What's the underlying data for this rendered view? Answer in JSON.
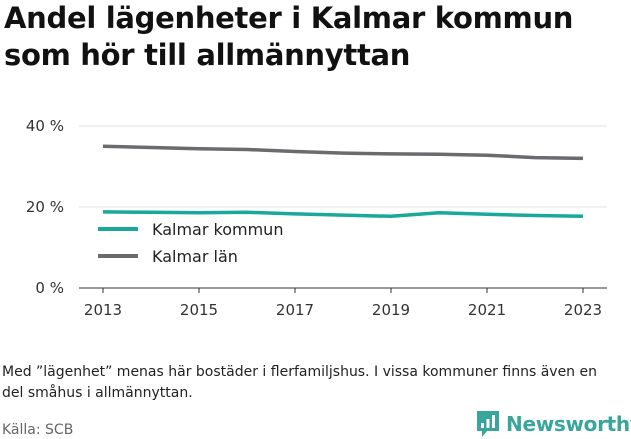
{
  "title": "Andel lägenheter i Kalmar kommun som hör till allmännyttan",
  "note": "Med ”lägenhet” menas här bostäder i flerfamiljshus. I vissa kommuner finns även en del småhus i allmännyttan.",
  "source": "Källa: SCB",
  "brand": {
    "name": "Newsworthy",
    "icon": "newsworthy-logo-icon",
    "color": "#3aa59b"
  },
  "chart_data": {
    "type": "line",
    "title": "Andel lägenheter i Kalmar kommun som hör till allmännyttan",
    "xlabel": "",
    "ylabel": "",
    "x": [
      2013,
      2014,
      2015,
      2016,
      2017,
      2018,
      2019,
      2020,
      2021,
      2022,
      2023
    ],
    "xticks": [
      2013,
      2015,
      2017,
      2019,
      2021,
      2023
    ],
    "ylim": [
      0,
      40
    ],
    "yticks": [
      0,
      20,
      40
    ],
    "ytick_labels": [
      "0 %",
      "20 %",
      "40 %"
    ],
    "grid": "horizontal",
    "legend_position": "left, inside plot",
    "series": [
      {
        "name": "Kalmar kommun",
        "color": "#1aa89a",
        "values": [
          18.8,
          18.7,
          18.6,
          18.7,
          18.3,
          18.0,
          17.7,
          18.6,
          18.2,
          17.9,
          17.7
        ]
      },
      {
        "name": "Kalmar län",
        "color": "#6b6b6f",
        "values": [
          35.0,
          34.7,
          34.4,
          34.2,
          33.7,
          33.3,
          33.1,
          33.0,
          32.8,
          32.2,
          32.0
        ]
      }
    ]
  }
}
